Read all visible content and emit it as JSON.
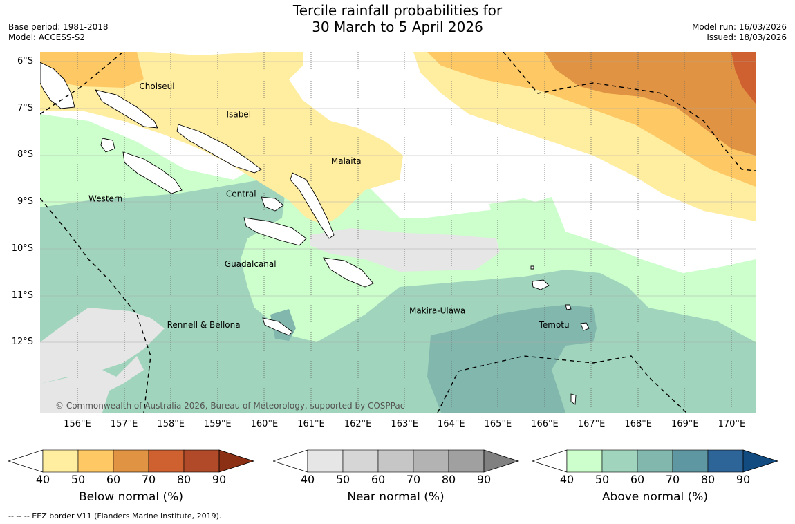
{
  "title_line1": "Tercile rainfall probabilities for",
  "title_line2": "30 March to 5 April 2026",
  "base_period": "Base period: 1981-2018",
  "model": "Model: ACCESS-S2",
  "model_run": "Model run: 16/03/2026",
  "issued": "Issued: 18/03/2026",
  "copyright": "© Commonwealth of Australia 2026, Bureau of Meteorology, supported by COSPPac",
  "footer_note": "--  --  -- EEZ border V11 (Flanders Marine Institute, 2019).",
  "longitude_ticks": [
    "156°E",
    "157°E",
    "158°E",
    "159°E",
    "160°E",
    "161°E",
    "162°E",
    "163°E",
    "164°E",
    "165°E",
    "166°E",
    "167°E",
    "168°E",
    "169°E",
    "170°E"
  ],
  "latitude_ticks": [
    "6°S",
    "7°S",
    "8°S",
    "9°S",
    "10°S",
    "11°S",
    "12°S"
  ],
  "province_labels": [
    {
      "name": "Choiseul",
      "lon": 157.7,
      "lat": -6.6
    },
    {
      "name": "Isabel",
      "lon": 159.45,
      "lat": -7.2
    },
    {
      "name": "Malaita",
      "lon": 161.75,
      "lat": -8.2
    },
    {
      "name": "Western",
      "lon": 156.6,
      "lat": -9.0
    },
    {
      "name": "Central",
      "lon": 159.5,
      "lat": -8.9
    },
    {
      "name": "Guadalcanal",
      "lon": 159.7,
      "lat": -10.4
    },
    {
      "name": "Rennell & Bellona",
      "lon": 158.7,
      "lat": -11.7
    },
    {
      "name": "Makira-Ulawa",
      "lon": 163.7,
      "lat": -11.4
    },
    {
      "name": "Temotu",
      "lon": 166.2,
      "lat": -11.7
    }
  ],
  "colorbars": [
    {
      "title": "Below normal (%)",
      "ticks": [
        "40",
        "50",
        "60",
        "70",
        "80",
        "90"
      ],
      "colors": [
        "#ffeda0",
        "#fec964",
        "#e09343",
        "#cf6130",
        "#b04a28",
        "#8b3014"
      ]
    },
    {
      "title": "Near normal (%)",
      "ticks": [
        "40",
        "50",
        "60",
        "70",
        "80",
        "90"
      ],
      "colors": [
        "#e6e6e6",
        "#d6d6d6",
        "#c6c6c6",
        "#b3b3b3",
        "#a0a0a0",
        "#808080"
      ]
    },
    {
      "title": "Above normal (%)",
      "ticks": [
        "40",
        "50",
        "60",
        "70",
        "80",
        "90"
      ],
      "colors": [
        "#ccffcc",
        "#a0d4bc",
        "#82b7ae",
        "#5e96a2",
        "#2d6599",
        "#124b80"
      ]
    }
  ]
}
